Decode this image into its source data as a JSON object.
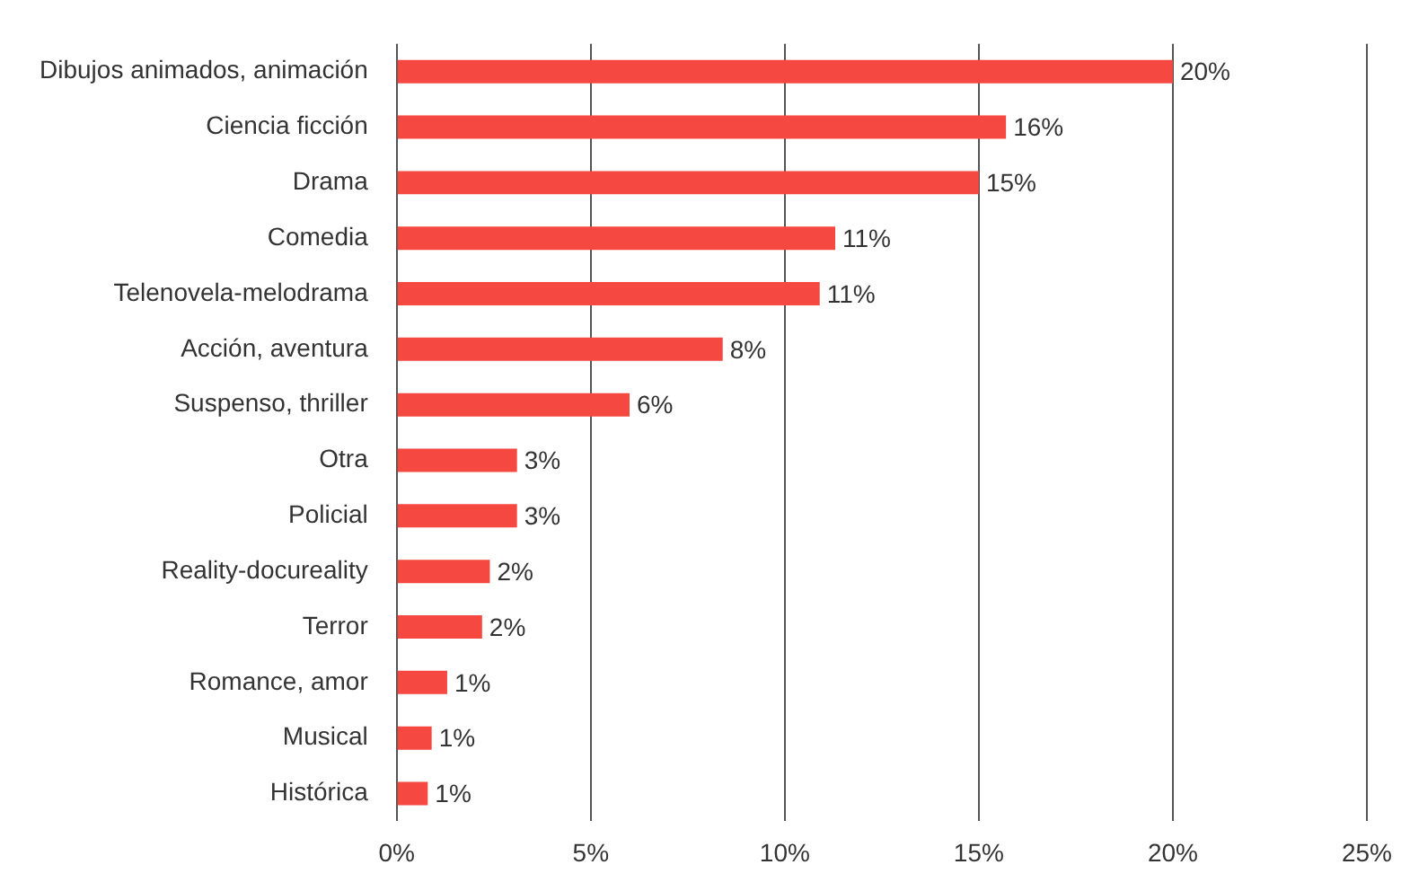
{
  "chart_data": {
    "type": "bar",
    "orientation": "horizontal",
    "categories": [
      "Dibujos animados, animación",
      "Ciencia ficción",
      "Drama",
      "Comedia",
      "Telenovela-melodrama",
      "Acción, aventura",
      "Suspenso, thriller",
      "Otra",
      "Policial",
      "Reality-docureality",
      "Terror",
      "Romance, amor",
      "Musical",
      "Histórica"
    ],
    "values": [
      20.0,
      15.7,
      15.0,
      11.3,
      10.9,
      8.4,
      6.0,
      3.1,
      3.1,
      2.4,
      2.2,
      1.3,
      0.9,
      0.8
    ],
    "value_labels": [
      "20%",
      "16%",
      "15%",
      "11%",
      "11%",
      "8%",
      "6%",
      "3%",
      "3%",
      "2%",
      "2%",
      "1%",
      "1%",
      "1%"
    ],
    "color": "#f44840",
    "xlim": [
      0,
      25
    ],
    "xticks": [
      {
        "value": 0,
        "label": "0%"
      },
      {
        "value": 5,
        "label": "5%"
      },
      {
        "value": 10,
        "label": "10%"
      },
      {
        "value": 15,
        "label": "15%"
      },
      {
        "value": 20,
        "label": "20%"
      },
      {
        "value": 25,
        "label": "25%"
      }
    ],
    "grid": "x",
    "legend": false
  }
}
